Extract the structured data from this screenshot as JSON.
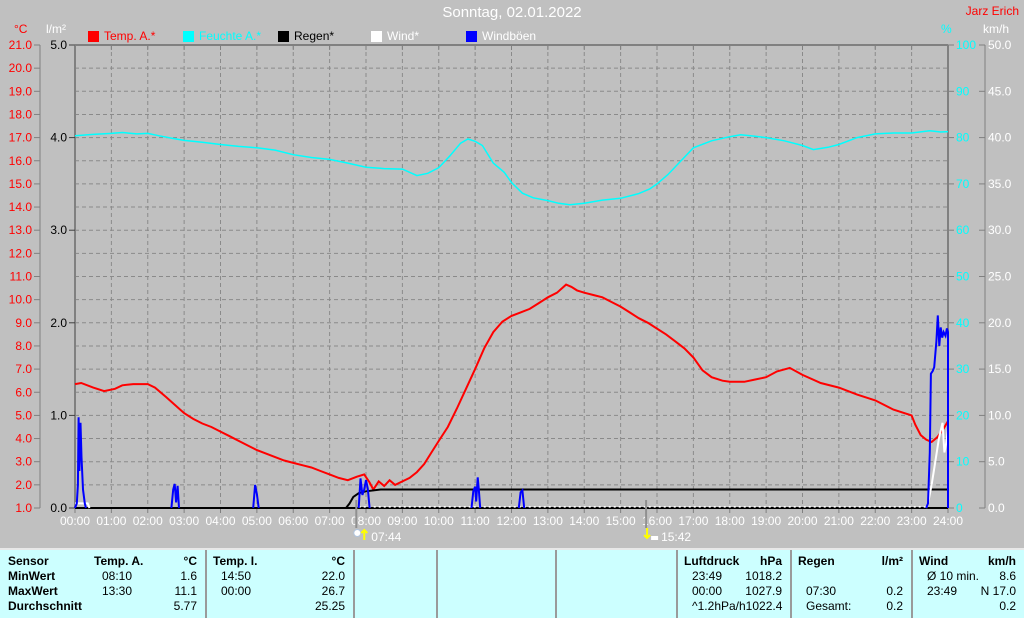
{
  "header": {
    "title": "Sonntag, 02.01.2022",
    "station": "Jarz Erich",
    "unit_temp": "°C",
    "unit_rain": "l/m²",
    "unit_humidity": "%",
    "unit_wind": "km/h"
  },
  "legend": [
    {
      "label": "Temp. A.*",
      "swatch_color": "#ff0000",
      "text_color": "#ff0000"
    },
    {
      "label": "Feuchte A.*",
      "swatch_color": "#00ffff",
      "text_color": "#00ffff"
    },
    {
      "label": "Regen*",
      "swatch_color": "#000000",
      "text_color": "#000000"
    },
    {
      "label": "Wind*",
      "swatch_color": "#ffffff",
      "text_color": "#ffffff"
    },
    {
      "label": "Windböen",
      "swatch_color": "#0000ff",
      "text_color": "#ffffff"
    }
  ],
  "markers": {
    "sunrise": {
      "label": "07:44",
      "hour": 7.733
    },
    "sunset": {
      "label": "15:42",
      "hour": 15.7
    }
  },
  "chart_data": {
    "type": "line",
    "x_axis": {
      "min_hour": 0,
      "max_hour": 24,
      "tick_labels": [
        "00:00",
        "01:00",
        "02:00",
        "03:00",
        "04:00",
        "05:00",
        "06:00",
        "07:00",
        "08:00",
        "09:00",
        "10:00",
        "11:00",
        "12:00",
        "13:00",
        "14:00",
        "15:00",
        "16:00",
        "17:00",
        "18:00",
        "19:00",
        "20:00",
        "21:00",
        "22:00",
        "23:00",
        "24:00"
      ]
    },
    "axes": {
      "temp_c": {
        "min": 1,
        "max": 21,
        "label_color": "#ff0000",
        "tick_labels": [
          "1.0",
          "2.0",
          "3.0",
          "4.0",
          "5.0",
          "6.0",
          "7.0",
          "8.0",
          "9.0",
          "10.0",
          "11.0",
          "12.0",
          "13.0",
          "14.0",
          "15.0",
          "16.0",
          "17.0",
          "18.0",
          "19.0",
          "20.0",
          "21.0"
        ]
      },
      "rain_lm2": {
        "min": 0,
        "max": 5,
        "label_color": "#000000",
        "tick_labels": [
          "0.0",
          "1.0",
          "2.0",
          "3.0",
          "4.0",
          "5.0"
        ]
      },
      "humidity_pct": {
        "min": 0,
        "max": 100,
        "label_color": "#00ffff",
        "tick_labels": [
          "0",
          "10",
          "20",
          "30",
          "40",
          "50",
          "60",
          "70",
          "80",
          "90",
          "100"
        ]
      },
      "wind_kmh": {
        "min": 0,
        "max": 50,
        "label_color": "#ffffff",
        "tick_labels": [
          "0.0",
          "5.0",
          "10.0",
          "15.0",
          "20.0",
          "25.0",
          "30.0",
          "35.0",
          "40.0",
          "45.0",
          "50.0"
        ]
      }
    },
    "series": [
      {
        "name": "Feuchte A.",
        "unit": "%",
        "axis": "humidity_pct",
        "color": "#00ffff",
        "width": 1.5,
        "segmented_at_zero": false,
        "points": [
          [
            0,
            80.4
          ],
          [
            0.5,
            80.7
          ],
          [
            1,
            80.9
          ],
          [
            1.3,
            81.1
          ],
          [
            1.7,
            80.8
          ],
          [
            2,
            80.9
          ],
          [
            2.3,
            80.4
          ],
          [
            2.7,
            79.8
          ],
          [
            3,
            79.4
          ],
          [
            3.5,
            79.0
          ],
          [
            4,
            78.5
          ],
          [
            4.5,
            78.1
          ],
          [
            5,
            77.8
          ],
          [
            5.5,
            77.3
          ],
          [
            6,
            76.3
          ],
          [
            6.5,
            75.7
          ],
          [
            7,
            75.3
          ],
          [
            7.5,
            74.5
          ],
          [
            8,
            73.6
          ],
          [
            8.5,
            73.3
          ],
          [
            9,
            73.2
          ],
          [
            9.4,
            71.8
          ],
          [
            9.7,
            72.3
          ],
          [
            10,
            73.5
          ],
          [
            10.3,
            76.0
          ],
          [
            10.6,
            78.8
          ],
          [
            10.8,
            79.7
          ],
          [
            11,
            79.2
          ],
          [
            11.2,
            78.3
          ],
          [
            11.5,
            74.5
          ],
          [
            11.8,
            72.5
          ],
          [
            12,
            70.3
          ],
          [
            12.3,
            68.0
          ],
          [
            12.6,
            67.0
          ],
          [
            13,
            66.4
          ],
          [
            13.3,
            65.8
          ],
          [
            13.6,
            65.5
          ],
          [
            14,
            65.8
          ],
          [
            14.5,
            66.5
          ],
          [
            15,
            66.9
          ],
          [
            15.5,
            67.9
          ],
          [
            15.8,
            68.9
          ],
          [
            16,
            70.0
          ],
          [
            16.3,
            72.0
          ],
          [
            16.6,
            74.5
          ],
          [
            17,
            77.8
          ],
          [
            17.5,
            79.3
          ],
          [
            18,
            80.2
          ],
          [
            18.3,
            80.6
          ],
          [
            18.7,
            80.3
          ],
          [
            19,
            80.0
          ],
          [
            19.5,
            79.3
          ],
          [
            20,
            78.3
          ],
          [
            20.3,
            77.4
          ],
          [
            20.7,
            77.9
          ],
          [
            21,
            78.5
          ],
          [
            21.5,
            80.0
          ],
          [
            22,
            80.8
          ],
          [
            22.5,
            81.0
          ],
          [
            23,
            81.0
          ],
          [
            23.5,
            81.5
          ],
          [
            23.8,
            81.2
          ],
          [
            24,
            81.3
          ]
        ]
      },
      {
        "name": "Temp. A.",
        "unit": "°C",
        "axis": "temp_c",
        "color": "#ff0000",
        "width": 2,
        "segmented_at_zero": false,
        "points": [
          [
            0,
            6.35
          ],
          [
            0.17,
            6.4
          ],
          [
            0.5,
            6.2
          ],
          [
            0.8,
            6.05
          ],
          [
            1.1,
            6.15
          ],
          [
            1.3,
            6.3
          ],
          [
            1.6,
            6.35
          ],
          [
            2,
            6.35
          ],
          [
            2.2,
            6.2
          ],
          [
            2.5,
            5.8
          ],
          [
            2.75,
            5.45
          ],
          [
            3,
            5.1
          ],
          [
            3.25,
            4.85
          ],
          [
            3.5,
            4.65
          ],
          [
            3.75,
            4.5
          ],
          [
            4,
            4.3
          ],
          [
            4.25,
            4.1
          ],
          [
            4.5,
            3.9
          ],
          [
            4.75,
            3.7
          ],
          [
            5,
            3.5
          ],
          [
            5.25,
            3.35
          ],
          [
            5.5,
            3.2
          ],
          [
            5.75,
            3.05
          ],
          [
            6,
            2.95
          ],
          [
            6.25,
            2.85
          ],
          [
            6.5,
            2.75
          ],
          [
            6.75,
            2.6
          ],
          [
            7,
            2.45
          ],
          [
            7.25,
            2.3
          ],
          [
            7.5,
            2.2
          ],
          [
            7.75,
            2.35
          ],
          [
            7.95,
            2.45
          ],
          [
            8.1,
            2.1
          ],
          [
            8.2,
            1.8
          ],
          [
            8.35,
            2.15
          ],
          [
            8.5,
            1.95
          ],
          [
            8.65,
            2.2
          ],
          [
            8.8,
            2.0
          ],
          [
            9,
            2.15
          ],
          [
            9.2,
            2.3
          ],
          [
            9.4,
            2.55
          ],
          [
            9.6,
            2.9
          ],
          [
            9.8,
            3.4
          ],
          [
            10,
            3.9
          ],
          [
            10.25,
            4.5
          ],
          [
            10.5,
            5.3
          ],
          [
            10.75,
            6.15
          ],
          [
            11,
            7.0
          ],
          [
            11.25,
            7.9
          ],
          [
            11.5,
            8.6
          ],
          [
            11.75,
            9.05
          ],
          [
            12,
            9.3
          ],
          [
            12.25,
            9.45
          ],
          [
            12.5,
            9.6
          ],
          [
            12.75,
            9.85
          ],
          [
            13,
            10.1
          ],
          [
            13.25,
            10.3
          ],
          [
            13.5,
            10.65
          ],
          [
            13.65,
            10.55
          ],
          [
            13.8,
            10.4
          ],
          [
            14,
            10.3
          ],
          [
            14.25,
            10.2
          ],
          [
            14.5,
            10.1
          ],
          [
            14.75,
            9.9
          ],
          [
            15,
            9.7
          ],
          [
            15.25,
            9.45
          ],
          [
            15.5,
            9.2
          ],
          [
            15.75,
            9.0
          ],
          [
            16,
            8.75
          ],
          [
            16.25,
            8.5
          ],
          [
            16.5,
            8.2
          ],
          [
            16.75,
            7.9
          ],
          [
            17,
            7.5
          ],
          [
            17.25,
            6.95
          ],
          [
            17.5,
            6.65
          ],
          [
            17.8,
            6.5
          ],
          [
            18,
            6.45
          ],
          [
            18.4,
            6.45
          ],
          [
            18.7,
            6.55
          ],
          [
            19,
            6.65
          ],
          [
            19.3,
            6.9
          ],
          [
            19.65,
            7.05
          ],
          [
            20,
            6.75
          ],
          [
            20.5,
            6.4
          ],
          [
            21,
            6.2
          ],
          [
            21.5,
            5.9
          ],
          [
            22,
            5.65
          ],
          [
            22.5,
            5.25
          ],
          [
            23,
            5.0
          ],
          [
            23.1,
            4.6
          ],
          [
            23.25,
            4.15
          ],
          [
            23.4,
            3.95
          ],
          [
            23.55,
            3.85
          ],
          [
            23.7,
            4.05
          ],
          [
            23.85,
            4.35
          ],
          [
            24,
            4.75
          ]
        ]
      },
      {
        "name": "Regen",
        "unit": "l/m²",
        "axis": "rain_lm2",
        "color": "#000000",
        "width": 2,
        "segmented_at_zero": false,
        "points": [
          [
            0,
            0
          ],
          [
            7.45,
            0
          ],
          [
            7.55,
            0.05
          ],
          [
            7.65,
            0.12
          ],
          [
            7.8,
            0.16
          ],
          [
            8,
            0.18
          ],
          [
            8.4,
            0.2
          ],
          [
            24,
            0.2
          ]
        ]
      },
      {
        "name": "Wind",
        "unit": "km/h",
        "axis": "wind_kmh",
        "color": "#ffffff",
        "width": 2,
        "segmented_at_zero": true,
        "points": [
          [
            0,
            0.5
          ],
          [
            0.35,
            0.5
          ],
          [
            0.4,
            0
          ],
          [
            23.4,
            0
          ],
          [
            23.45,
            0.5
          ],
          [
            23.55,
            2.5
          ],
          [
            23.65,
            5.0
          ],
          [
            23.75,
            7.5
          ],
          [
            23.85,
            9.2
          ],
          [
            23.9,
            6.0
          ],
          [
            23.95,
            7.0
          ],
          [
            24,
            8.6
          ]
        ]
      },
      {
        "name": "Windböen",
        "unit": "km/h",
        "axis": "wind_kmh",
        "color": "#0000ff",
        "width": 2,
        "segmented_at_zero": true,
        "points": [
          [
            0,
            0
          ],
          [
            0.05,
            0.5
          ],
          [
            0.08,
            2.5
          ],
          [
            0.1,
            9.8
          ],
          [
            0.12,
            4.0
          ],
          [
            0.15,
            9.2
          ],
          [
            0.18,
            5.5
          ],
          [
            0.22,
            2.0
          ],
          [
            0.27,
            0.5
          ],
          [
            0.3,
            0
          ],
          [
            2.65,
            0
          ],
          [
            2.7,
            2.0
          ],
          [
            2.74,
            2.6
          ],
          [
            2.78,
            0.6
          ],
          [
            2.82,
            2.4
          ],
          [
            2.86,
            0
          ],
          [
            4.9,
            0
          ],
          [
            4.95,
            2.5
          ],
          [
            5.0,
            1.5
          ],
          [
            5.05,
            0
          ],
          [
            7.8,
            0
          ],
          [
            7.85,
            3.2
          ],
          [
            7.9,
            1.4
          ],
          [
            7.95,
            2.0
          ],
          [
            8.0,
            3.0
          ],
          [
            8.05,
            2.1
          ],
          [
            8.1,
            0
          ],
          [
            10.9,
            0
          ],
          [
            10.95,
            1.8
          ],
          [
            11.0,
            2.3
          ],
          [
            11.03,
            0.7
          ],
          [
            11.07,
            3.3
          ],
          [
            11.1,
            2.0
          ],
          [
            11.14,
            0
          ],
          [
            12.2,
            0
          ],
          [
            12.25,
            1.7
          ],
          [
            12.3,
            1.9
          ],
          [
            12.35,
            0
          ],
          [
            23.4,
            0
          ],
          [
            23.45,
            0.5
          ],
          [
            23.5,
            6.0
          ],
          [
            23.53,
            14.5
          ],
          [
            23.58,
            14.8
          ],
          [
            23.62,
            15.2
          ],
          [
            23.68,
            18.0
          ],
          [
            23.72,
            20.8
          ],
          [
            23.76,
            17.5
          ],
          [
            23.8,
            19.5
          ],
          [
            23.84,
            18.4
          ],
          [
            23.88,
            19.0
          ],
          [
            23.93,
            18.6
          ],
          [
            23.97,
            19.4
          ],
          [
            24,
            19.0
          ],
          [
            24,
            0
          ]
        ]
      }
    ]
  },
  "table": {
    "row_labels": [
      "Sensor",
      "MinWert",
      "MaxWert",
      "Durchschnitt"
    ],
    "groups": [
      {
        "name": "Temp. A.",
        "unit": "°C",
        "rows": [
          [
            "08:10",
            "1.6"
          ],
          [
            "13:30",
            "11.1"
          ],
          [
            "",
            "5.77"
          ]
        ]
      },
      {
        "name": "Temp. I.",
        "unit": "°C",
        "rows": [
          [
            "14:50",
            "22.0"
          ],
          [
            "00:00",
            "26.7"
          ],
          [
            "",
            "25.25"
          ]
        ]
      },
      {
        "name": "",
        "unit": "",
        "rows": [
          [
            "",
            ""
          ],
          [
            "",
            ""
          ],
          [
            "",
            ""
          ]
        ]
      },
      {
        "name": "",
        "unit": "",
        "rows": [
          [
            "",
            ""
          ],
          [
            "",
            ""
          ],
          [
            "",
            ""
          ]
        ]
      },
      {
        "name": "",
        "unit": "",
        "rows": [
          [
            "",
            ""
          ],
          [
            "",
            ""
          ],
          [
            "",
            ""
          ]
        ]
      },
      {
        "name": "Luftdruck",
        "unit": "hPa",
        "rows": [
          [
            "23:49",
            "1018.2"
          ],
          [
            "00:00",
            "1027.9"
          ],
          [
            "^1.2hPa/h",
            "1022.4"
          ]
        ]
      },
      {
        "name": "Regen",
        "unit": "l/m²",
        "rows": [
          [
            "",
            ""
          ],
          [
            "07:30",
            "0.2"
          ],
          [
            "Gesamt:",
            "0.2"
          ]
        ]
      },
      {
        "name": "Wind",
        "unit": "km/h",
        "rows": [
          [
            "Ø 10 min.",
            "8.6"
          ],
          [
            "23:49",
            "N 17.0"
          ],
          [
            "",
            "0.2"
          ]
        ]
      }
    ]
  }
}
